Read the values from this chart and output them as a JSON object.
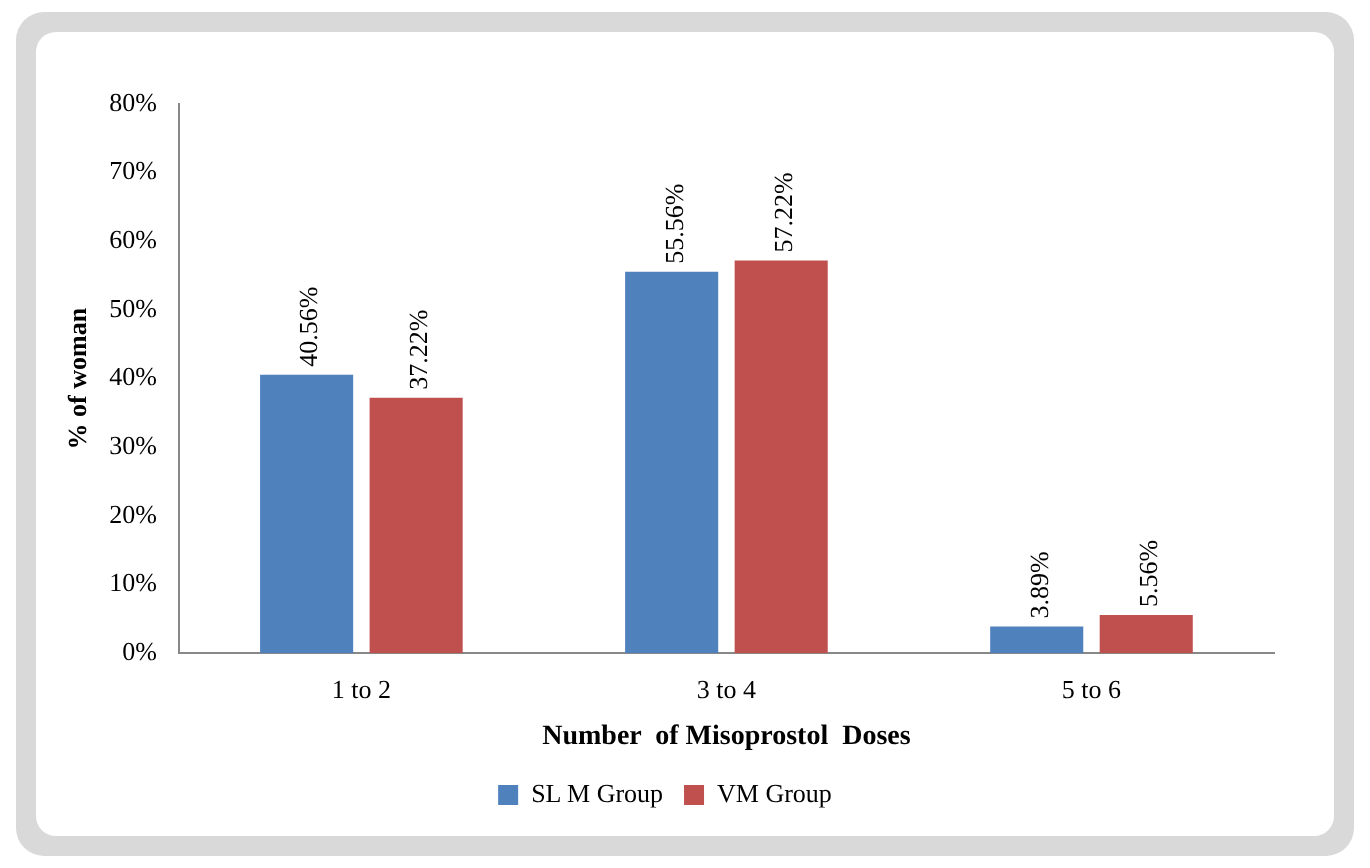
{
  "chart_data": {
    "type": "bar",
    "xlabel": "Number  of Misoprostol  Doses",
    "ylabel": "% of woman",
    "categories": [
      "1 to 2",
      "3 to 4",
      "5 to 6"
    ],
    "series": [
      {
        "name": "SL M Group",
        "color": "#4f81bd",
        "values": [
          40.56,
          55.56,
          3.89
        ],
        "value_labels": [
          "40.56%",
          "55.56%",
          "3.89%"
        ]
      },
      {
        "name": "VM Group",
        "color": "#c0504d",
        "values": [
          37.22,
          57.22,
          5.56
        ],
        "value_labels": [
          "37.22%",
          "57.22%",
          "5.56%"
        ]
      }
    ],
    "ylim": [
      0,
      80
    ],
    "yticks": [
      {
        "value": 0,
        "label": "0%"
      },
      {
        "value": 10,
        "label": "10%"
      },
      {
        "value": 20,
        "label": "20%"
      },
      {
        "value": 30,
        "label": "30%"
      },
      {
        "value": 40,
        "label": "40%"
      },
      {
        "value": 50,
        "label": "50%"
      },
      {
        "value": 60,
        "label": "60%"
      },
      {
        "value": 70,
        "label": "70%"
      },
      {
        "value": 80,
        "label": "80%"
      }
    ],
    "grid": false,
    "legend": "bottom"
  }
}
